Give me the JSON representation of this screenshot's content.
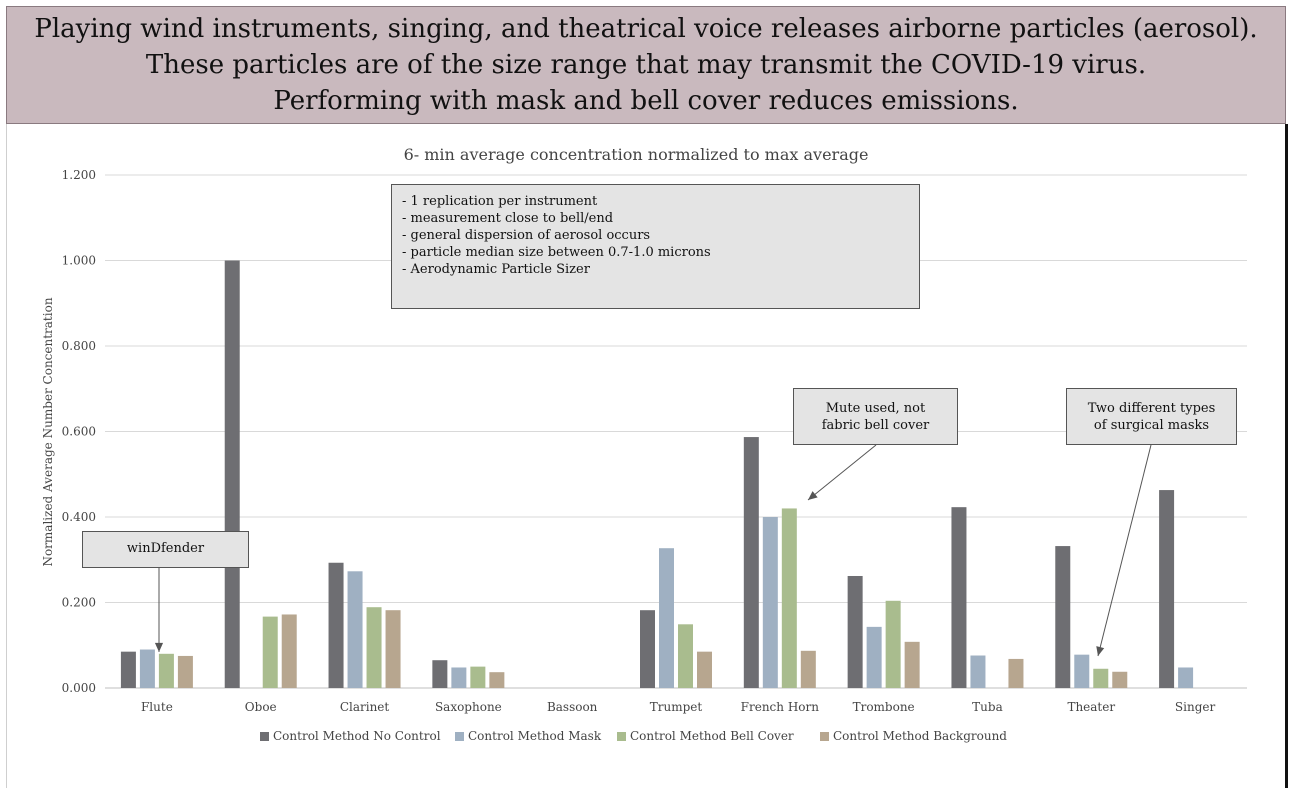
{
  "banner": {
    "line1": "Playing wind instruments, singing, and theatrical voice releases airborne particles (aerosol).",
    "line2": "These particles are of the size range that may transmit the COVID-19 virus.",
    "line3": "Performing with mask and bell cover reduces emissions."
  },
  "notes": [
    "- 1 replication per instrument",
    "- measurement close to bell/end",
    "- general dispersion of aerosol occurs",
    "- particle median size between 0.7-1.0 microns",
    "- Aerodynamic Particle Sizer"
  ],
  "callouts": {
    "windfender": "winDfender",
    "mute_line1": "Mute used, not",
    "mute_line2": "fabric bell cover",
    "masks_line1": "Two different types",
    "masks_line2": "of surgical masks"
  },
  "chart_data": {
    "type": "bar",
    "title": "6- min average concentration normalized to max average",
    "xlabel": "",
    "ylabel": "Normalized Average Number Concentration",
    "ylim": [
      0,
      1.2
    ],
    "yticks": [
      "0.000",
      "0.200",
      "0.400",
      "0.600",
      "0.800",
      "1.000",
      "1.200"
    ],
    "grid": true,
    "legend_position": "bottom",
    "categories": [
      "Flute",
      "Oboe",
      "Clarinet",
      "Saxophone",
      "Bassoon",
      "Trumpet",
      "French Horn",
      "Trombone",
      "Tuba",
      "Theater",
      "Singer"
    ],
    "series": [
      {
        "name": "Control Method No Control",
        "color": "#6e6e72",
        "values": [
          0.085,
          1.0,
          0.293,
          0.065,
          null,
          0.182,
          0.587,
          0.262,
          0.423,
          0.332,
          0.463
        ]
      },
      {
        "name": "Control Method Mask",
        "color": "#9fb0c2",
        "values": [
          0.09,
          null,
          0.273,
          0.048,
          null,
          0.327,
          0.4,
          0.143,
          0.076,
          0.078,
          0.048
        ]
      },
      {
        "name": "Control Method Bell Cover",
        "color": "#a9bc8e",
        "values": [
          0.08,
          0.167,
          0.189,
          0.05,
          null,
          0.149,
          0.42,
          0.204,
          null,
          0.045,
          null
        ]
      },
      {
        "name": "Control Method Background",
        "color": "#b7a68f",
        "values": [
          0.075,
          0.172,
          0.182,
          0.037,
          null,
          0.085,
          0.087,
          0.108,
          0.068,
          0.038,
          null
        ]
      }
    ]
  }
}
